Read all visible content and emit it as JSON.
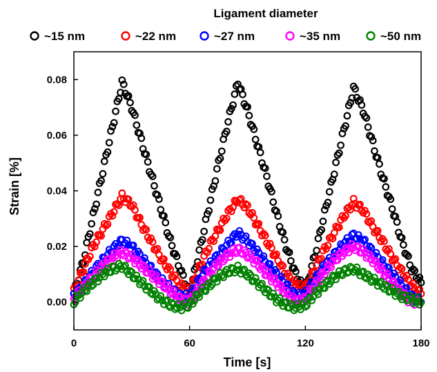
{
  "chart_data": {
    "type": "scatter",
    "legend_title": "Ligament diameter",
    "legend_position": "top",
    "xlabel": "Time [s]",
    "ylabel": "Strain [%]",
    "xlim": [
      0,
      180
    ],
    "ylim": [
      -0.01,
      0.09
    ],
    "xticks": [
      "0",
      "60",
      "120",
      "180"
    ],
    "yticks": [
      "0.00",
      "0.02",
      "0.04",
      "0.06",
      "0.08"
    ],
    "grid": false,
    "marker": "open-circle",
    "series": [
      {
        "name": "~15 nm",
        "color": "#000000",
        "x": [
          0,
          5,
          10,
          15,
          20,
          25,
          30,
          35,
          40,
          45,
          50,
          55,
          60,
          65,
          70,
          75,
          80,
          85,
          90,
          95,
          100,
          105,
          110,
          115,
          120,
          125,
          130,
          135,
          140,
          145,
          150,
          155,
          160,
          165,
          170,
          175,
          180
        ],
        "y": [
          0.003,
          0.015,
          0.031,
          0.047,
          0.063,
          0.079,
          0.07,
          0.058,
          0.046,
          0.034,
          0.022,
          0.012,
          0.003,
          0.018,
          0.034,
          0.05,
          0.065,
          0.079,
          0.069,
          0.057,
          0.045,
          0.032,
          0.02,
          0.01,
          0.004,
          0.017,
          0.032,
          0.047,
          0.062,
          0.077,
          0.069,
          0.057,
          0.045,
          0.034,
          0.022,
          0.012,
          0.007
        ]
      },
      {
        "name": "~22 nm",
        "color": "#ff0000",
        "x": [
          0,
          5,
          10,
          15,
          20,
          25,
          30,
          35,
          40,
          45,
          50,
          55,
          60,
          65,
          70,
          75,
          80,
          85,
          90,
          95,
          100,
          105,
          110,
          115,
          120,
          125,
          130,
          135,
          140,
          145,
          150,
          155,
          160,
          165,
          170,
          175,
          180
        ],
        "y": [
          0.004,
          0.012,
          0.02,
          0.026,
          0.032,
          0.038,
          0.035,
          0.028,
          0.022,
          0.016,
          0.011,
          0.006,
          0.004,
          0.012,
          0.02,
          0.026,
          0.032,
          0.037,
          0.034,
          0.028,
          0.022,
          0.016,
          0.01,
          0.006,
          0.005,
          0.012,
          0.019,
          0.025,
          0.031,
          0.036,
          0.033,
          0.027,
          0.022,
          0.016,
          0.011,
          0.006,
          0.003
        ]
      },
      {
        "name": "~27 nm",
        "color": "#0000ff",
        "x": [
          0,
          5,
          10,
          15,
          20,
          25,
          30,
          35,
          40,
          45,
          50,
          55,
          60,
          65,
          70,
          75,
          80,
          85,
          90,
          95,
          100,
          105,
          110,
          115,
          120,
          125,
          130,
          135,
          140,
          145,
          150,
          155,
          160,
          165,
          170,
          175,
          180
        ],
        "y": [
          0.002,
          0.006,
          0.011,
          0.015,
          0.019,
          0.022,
          0.02,
          0.016,
          0.012,
          0.008,
          0.005,
          0.002,
          0.002,
          0.008,
          0.013,
          0.017,
          0.021,
          0.025,
          0.022,
          0.018,
          0.014,
          0.01,
          0.006,
          0.002,
          0.003,
          0.008,
          0.013,
          0.017,
          0.021,
          0.024,
          0.022,
          0.018,
          0.014,
          0.01,
          0.006,
          0.002,
          0.0
        ]
      },
      {
        "name": "~35 nm",
        "color": "#ff00ff",
        "x": [
          0,
          5,
          10,
          15,
          20,
          25,
          30,
          35,
          40,
          45,
          50,
          55,
          60,
          65,
          70,
          75,
          80,
          85,
          90,
          95,
          100,
          105,
          110,
          115,
          120,
          125,
          130,
          135,
          140,
          145,
          150,
          155,
          160,
          165,
          170,
          175,
          180
        ],
        "y": [
          0.001,
          0.005,
          0.009,
          0.013,
          0.016,
          0.018,
          0.016,
          0.013,
          0.01,
          0.007,
          0.004,
          0.001,
          0.0,
          0.005,
          0.01,
          0.014,
          0.017,
          0.019,
          0.017,
          0.014,
          0.01,
          0.007,
          0.003,
          0.0,
          0.001,
          0.006,
          0.011,
          0.015,
          0.018,
          0.02,
          0.018,
          0.015,
          0.011,
          0.007,
          0.003,
          0.0,
          0.0
        ]
      },
      {
        "name": "~50 nm",
        "color": "#008000",
        "x": [
          0,
          5,
          10,
          15,
          20,
          25,
          30,
          35,
          40,
          45,
          50,
          55,
          60,
          65,
          70,
          75,
          80,
          85,
          90,
          95,
          100,
          105,
          110,
          115,
          120,
          125,
          130,
          135,
          140,
          145,
          150,
          155,
          160,
          165,
          170,
          175,
          180
        ],
        "y": [
          0.0,
          0.004,
          0.007,
          0.01,
          0.012,
          0.013,
          0.01,
          0.007,
          0.004,
          0.001,
          -0.001,
          -0.002,
          -0.001,
          0.003,
          0.006,
          0.009,
          0.011,
          0.012,
          0.01,
          0.007,
          0.004,
          0.001,
          -0.001,
          -0.002,
          -0.001,
          0.003,
          0.006,
          0.009,
          0.011,
          0.012,
          0.01,
          0.008,
          0.006,
          0.004,
          0.002,
          0.001,
          0.0
        ]
      }
    ]
  }
}
